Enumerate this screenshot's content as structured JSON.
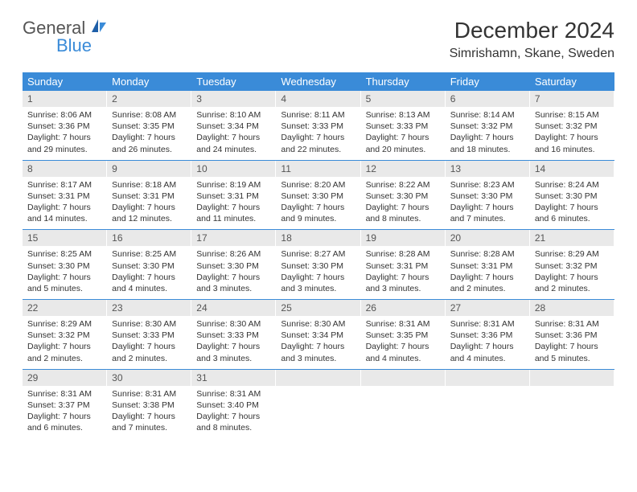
{
  "brand": {
    "text1": "General",
    "text2": "Blue",
    "color_general": "#555555",
    "color_blue": "#3a8bd8"
  },
  "title": "December 2024",
  "location": "Simrishamn, Skane, Sweden",
  "colors": {
    "header_bg": "#3a8bd8",
    "header_fg": "#ffffff",
    "daynum_bg": "#e9e9e9",
    "row_divider": "#3a8bd8",
    "page_bg": "#ffffff",
    "text": "#333333"
  },
  "weekdays": [
    "Sunday",
    "Monday",
    "Tuesday",
    "Wednesday",
    "Thursday",
    "Friday",
    "Saturday"
  ],
  "weeks": [
    [
      {
        "n": "1",
        "sunrise": "Sunrise: 8:06 AM",
        "sunset": "Sunset: 3:36 PM",
        "daylight": "Daylight: 7 hours and 29 minutes."
      },
      {
        "n": "2",
        "sunrise": "Sunrise: 8:08 AM",
        "sunset": "Sunset: 3:35 PM",
        "daylight": "Daylight: 7 hours and 26 minutes."
      },
      {
        "n": "3",
        "sunrise": "Sunrise: 8:10 AM",
        "sunset": "Sunset: 3:34 PM",
        "daylight": "Daylight: 7 hours and 24 minutes."
      },
      {
        "n": "4",
        "sunrise": "Sunrise: 8:11 AM",
        "sunset": "Sunset: 3:33 PM",
        "daylight": "Daylight: 7 hours and 22 minutes."
      },
      {
        "n": "5",
        "sunrise": "Sunrise: 8:13 AM",
        "sunset": "Sunset: 3:33 PM",
        "daylight": "Daylight: 7 hours and 20 minutes."
      },
      {
        "n": "6",
        "sunrise": "Sunrise: 8:14 AM",
        "sunset": "Sunset: 3:32 PM",
        "daylight": "Daylight: 7 hours and 18 minutes."
      },
      {
        "n": "7",
        "sunrise": "Sunrise: 8:15 AM",
        "sunset": "Sunset: 3:32 PM",
        "daylight": "Daylight: 7 hours and 16 minutes."
      }
    ],
    [
      {
        "n": "8",
        "sunrise": "Sunrise: 8:17 AM",
        "sunset": "Sunset: 3:31 PM",
        "daylight": "Daylight: 7 hours and 14 minutes."
      },
      {
        "n": "9",
        "sunrise": "Sunrise: 8:18 AM",
        "sunset": "Sunset: 3:31 PM",
        "daylight": "Daylight: 7 hours and 12 minutes."
      },
      {
        "n": "10",
        "sunrise": "Sunrise: 8:19 AM",
        "sunset": "Sunset: 3:31 PM",
        "daylight": "Daylight: 7 hours and 11 minutes."
      },
      {
        "n": "11",
        "sunrise": "Sunrise: 8:20 AM",
        "sunset": "Sunset: 3:30 PM",
        "daylight": "Daylight: 7 hours and 9 minutes."
      },
      {
        "n": "12",
        "sunrise": "Sunrise: 8:22 AM",
        "sunset": "Sunset: 3:30 PM",
        "daylight": "Daylight: 7 hours and 8 minutes."
      },
      {
        "n": "13",
        "sunrise": "Sunrise: 8:23 AM",
        "sunset": "Sunset: 3:30 PM",
        "daylight": "Daylight: 7 hours and 7 minutes."
      },
      {
        "n": "14",
        "sunrise": "Sunrise: 8:24 AM",
        "sunset": "Sunset: 3:30 PM",
        "daylight": "Daylight: 7 hours and 6 minutes."
      }
    ],
    [
      {
        "n": "15",
        "sunrise": "Sunrise: 8:25 AM",
        "sunset": "Sunset: 3:30 PM",
        "daylight": "Daylight: 7 hours and 5 minutes."
      },
      {
        "n": "16",
        "sunrise": "Sunrise: 8:25 AM",
        "sunset": "Sunset: 3:30 PM",
        "daylight": "Daylight: 7 hours and 4 minutes."
      },
      {
        "n": "17",
        "sunrise": "Sunrise: 8:26 AM",
        "sunset": "Sunset: 3:30 PM",
        "daylight": "Daylight: 7 hours and 3 minutes."
      },
      {
        "n": "18",
        "sunrise": "Sunrise: 8:27 AM",
        "sunset": "Sunset: 3:30 PM",
        "daylight": "Daylight: 7 hours and 3 minutes."
      },
      {
        "n": "19",
        "sunrise": "Sunrise: 8:28 AM",
        "sunset": "Sunset: 3:31 PM",
        "daylight": "Daylight: 7 hours and 3 minutes."
      },
      {
        "n": "20",
        "sunrise": "Sunrise: 8:28 AM",
        "sunset": "Sunset: 3:31 PM",
        "daylight": "Daylight: 7 hours and 2 minutes."
      },
      {
        "n": "21",
        "sunrise": "Sunrise: 8:29 AM",
        "sunset": "Sunset: 3:32 PM",
        "daylight": "Daylight: 7 hours and 2 minutes."
      }
    ],
    [
      {
        "n": "22",
        "sunrise": "Sunrise: 8:29 AM",
        "sunset": "Sunset: 3:32 PM",
        "daylight": "Daylight: 7 hours and 2 minutes."
      },
      {
        "n": "23",
        "sunrise": "Sunrise: 8:30 AM",
        "sunset": "Sunset: 3:33 PM",
        "daylight": "Daylight: 7 hours and 2 minutes."
      },
      {
        "n": "24",
        "sunrise": "Sunrise: 8:30 AM",
        "sunset": "Sunset: 3:33 PM",
        "daylight": "Daylight: 7 hours and 3 minutes."
      },
      {
        "n": "25",
        "sunrise": "Sunrise: 8:30 AM",
        "sunset": "Sunset: 3:34 PM",
        "daylight": "Daylight: 7 hours and 3 minutes."
      },
      {
        "n": "26",
        "sunrise": "Sunrise: 8:31 AM",
        "sunset": "Sunset: 3:35 PM",
        "daylight": "Daylight: 7 hours and 4 minutes."
      },
      {
        "n": "27",
        "sunrise": "Sunrise: 8:31 AM",
        "sunset": "Sunset: 3:36 PM",
        "daylight": "Daylight: 7 hours and 4 minutes."
      },
      {
        "n": "28",
        "sunrise": "Sunrise: 8:31 AM",
        "sunset": "Sunset: 3:36 PM",
        "daylight": "Daylight: 7 hours and 5 minutes."
      }
    ],
    [
      {
        "n": "29",
        "sunrise": "Sunrise: 8:31 AM",
        "sunset": "Sunset: 3:37 PM",
        "daylight": "Daylight: 7 hours and 6 minutes."
      },
      {
        "n": "30",
        "sunrise": "Sunrise: 8:31 AM",
        "sunset": "Sunset: 3:38 PM",
        "daylight": "Daylight: 7 hours and 7 minutes."
      },
      {
        "n": "31",
        "sunrise": "Sunrise: 8:31 AM",
        "sunset": "Sunset: 3:40 PM",
        "daylight": "Daylight: 7 hours and 8 minutes."
      },
      null,
      null,
      null,
      null
    ]
  ]
}
